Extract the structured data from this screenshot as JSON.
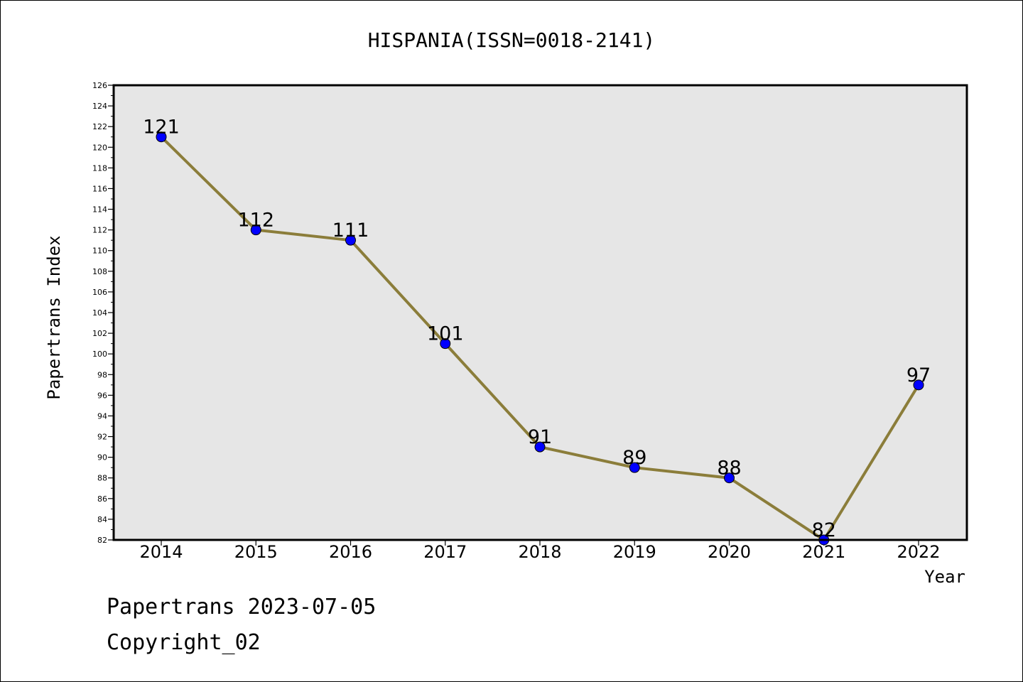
{
  "chart_data": {
    "type": "line",
    "title": "HISPANIA(ISSN=0018-2141)",
    "xlabel": "Year",
    "ylabel": "Papertrans Index",
    "x": [
      "2014",
      "2015",
      "2016",
      "2017",
      "2018",
      "2019",
      "2020",
      "2021",
      "2022"
    ],
    "series": [
      {
        "values": [
          121,
          112,
          111,
          101,
          91,
          89,
          88,
          82,
          97
        ]
      }
    ],
    "ylim": [
      82,
      126
    ],
    "ytick_step": 2,
    "grid": false,
    "data_labels": true,
    "colors": {
      "line": "#8b7d3a",
      "marker": "#0000ff",
      "plot_bg": "#e6e6e6"
    }
  },
  "footer": {
    "line1": "Papertrans 2023-07-05",
    "line2": "Copyright_02"
  }
}
